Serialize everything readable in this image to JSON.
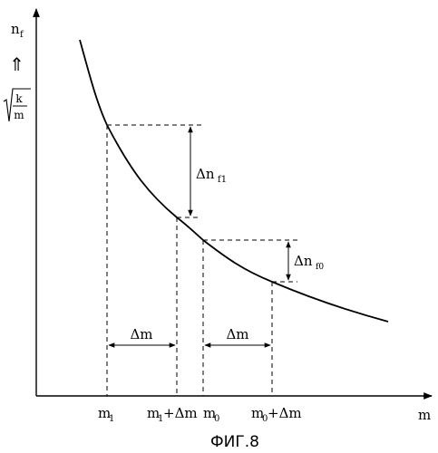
{
  "y_axis": {
    "symbol": "n",
    "subscript": "f",
    "arrow": "⇑",
    "root_numerator": "k",
    "root_denominator": "m"
  },
  "x_axis": {
    "label": "m"
  },
  "ticks": [
    {
      "base": "m",
      "sub": "1",
      "suffix": ""
    },
    {
      "base": "m",
      "sub": "1",
      "suffix": "+Δm"
    },
    {
      "base": "m",
      "sub": "0",
      "suffix": ""
    },
    {
      "base": "m",
      "sub": "0",
      "suffix": "+Δm"
    }
  ],
  "delta_m_label": "Δm",
  "delta_nf1": {
    "base": "Δn",
    "sub": "f1"
  },
  "delta_nf0": {
    "base": "Δn",
    "sub": "f0"
  },
  "caption": "ФИГ.8"
}
